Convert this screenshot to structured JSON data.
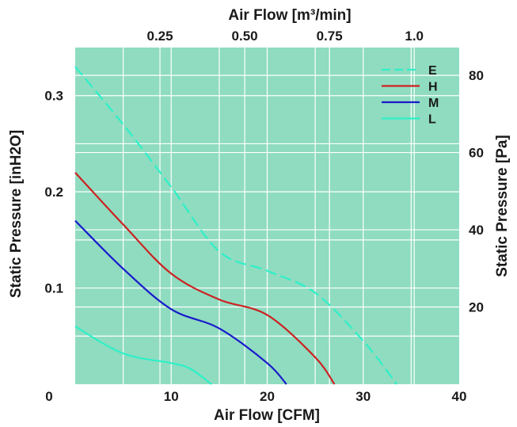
{
  "chart_data": {
    "type": "line",
    "xlabel": "Air Flow  [CFM]",
    "x2label": "Air Flow  [m³/min]",
    "ylabel": "Static Pressure [inH2O]",
    "y2label": "Static Pressure [Pa]",
    "xlim": [
      0,
      40
    ],
    "ylim": [
      0,
      0.35
    ],
    "x2lim": [
      0,
      1.1327
    ],
    "y2lim": [
      0,
      87.2
    ],
    "x_ticks": [
      0,
      10,
      20,
      30,
      40
    ],
    "x_tick_labels": [
      "0",
      "10",
      "20",
      "30",
      "40"
    ],
    "y_ticks": [
      0.1,
      0.2,
      0.3
    ],
    "y_tick_labels": [
      "0.1",
      "0.2",
      "0.3"
    ],
    "x2_ticks": [
      0.25,
      0.5,
      0.75,
      1.0
    ],
    "x2_tick_labels": [
      "0.25",
      "0.50",
      "0.75",
      "1.0"
    ],
    "y2_ticks": [
      20,
      40,
      60,
      80
    ],
    "y2_tick_labels": [
      "20",
      "40",
      "60",
      "80"
    ],
    "grid": true,
    "legend_position": "top-right",
    "background_color": "#8fdcc0",
    "series": [
      {
        "name": "E",
        "color": "#2ef0c8",
        "dashed": true,
        "x": [
          0,
          5,
          10,
          15,
          20,
          25,
          30,
          33.5
        ],
        "y": [
          0.33,
          0.27,
          0.205,
          0.138,
          0.118,
          0.095,
          0.045,
          0.0
        ]
      },
      {
        "name": "H",
        "color": "#cc2222",
        "dashed": false,
        "x": [
          0,
          5,
          10,
          15,
          20,
          25,
          27
        ],
        "y": [
          0.22,
          0.166,
          0.115,
          0.088,
          0.072,
          0.028,
          0.0
        ]
      },
      {
        "name": "M",
        "color": "#1a1acc",
        "dashed": false,
        "x": [
          0,
          5,
          10,
          15,
          20,
          22
        ],
        "y": [
          0.17,
          0.12,
          0.078,
          0.058,
          0.022,
          0.0
        ]
      },
      {
        "name": "L",
        "color": "#2ef0c8",
        "dashed": false,
        "x": [
          0,
          5,
          10,
          12,
          14.2
        ],
        "y": [
          0.06,
          0.032,
          0.022,
          0.016,
          0.0
        ]
      }
    ]
  }
}
